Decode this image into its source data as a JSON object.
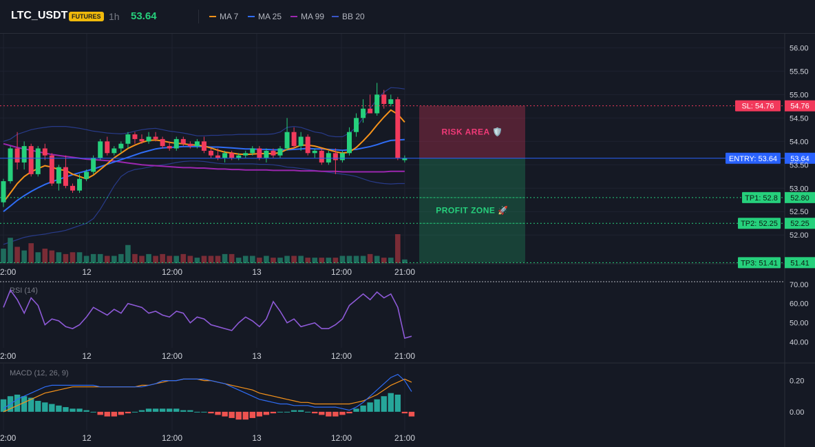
{
  "header": {
    "symbol": "LTC_USDT",
    "badge": "FUTURES",
    "timeframe": "1h",
    "price": "53.64",
    "legend": [
      {
        "label": "MA 7",
        "color": "#f7931a"
      },
      {
        "label": "MA 25",
        "color": "#2f6df6"
      },
      {
        "label": "MA 99",
        "color": "#9c27b0"
      },
      {
        "label": "BB 20",
        "color": "#283b8a"
      }
    ]
  },
  "colors": {
    "up": "#26a69a",
    "down": "#ef5350",
    "candle_up": "#26d07c",
    "candle_down": "#f23a5c",
    "entry": "#2962ff",
    "sl": "#f2395b",
    "tp": "#26d07c"
  },
  "chart_data": [
    {
      "type": "candlestick",
      "title": "",
      "y_ticks": [
        56.0,
        55.5,
        55.0,
        54.5,
        54.0,
        53.5,
        53.0,
        52.5,
        52.0
      ],
      "ylim": [
        51.4,
        56.3
      ],
      "x_ticks": [
        {
          "label": "12",
          "index": 12
        },
        {
          "label": "12:00",
          "index": 24
        },
        {
          "label": "13",
          "index": 36
        },
        {
          "label": "12:00",
          "index": 48
        },
        {
          "label": "21:00",
          "index": 57
        }
      ],
      "x_ticks_leading": "2:00",
      "candles": [
        {
          "o": 52.7,
          "h": 53.2,
          "l": 52.6,
          "c": 53.15
        },
        {
          "o": 53.15,
          "h": 53.9,
          "l": 53.1,
          "c": 53.85
        },
        {
          "o": 53.85,
          "h": 54.2,
          "l": 53.4,
          "c": 53.55
        },
        {
          "o": 53.55,
          "h": 54.0,
          "l": 53.4,
          "c": 53.9
        },
        {
          "o": 53.9,
          "h": 53.95,
          "l": 53.25,
          "c": 53.3
        },
        {
          "o": 53.3,
          "h": 53.9,
          "l": 53.25,
          "c": 53.85
        },
        {
          "o": 53.85,
          "h": 53.95,
          "l": 53.6,
          "c": 53.7
        },
        {
          "o": 53.7,
          "h": 53.75,
          "l": 53.05,
          "c": 53.1
        },
        {
          "o": 53.1,
          "h": 53.5,
          "l": 52.95,
          "c": 53.45
        },
        {
          "o": 53.45,
          "h": 53.7,
          "l": 53.0,
          "c": 53.05
        },
        {
          "o": 53.05,
          "h": 53.1,
          "l": 52.9,
          "c": 52.95
        },
        {
          "o": 52.95,
          "h": 53.3,
          "l": 52.9,
          "c": 53.2
        },
        {
          "o": 53.2,
          "h": 53.4,
          "l": 53.15,
          "c": 53.35
        },
        {
          "o": 53.35,
          "h": 53.7,
          "l": 53.3,
          "c": 53.65
        },
        {
          "o": 53.65,
          "h": 54.05,
          "l": 53.6,
          "c": 54.0
        },
        {
          "o": 54.0,
          "h": 54.1,
          "l": 53.7,
          "c": 53.75
        },
        {
          "o": 53.75,
          "h": 53.9,
          "l": 53.7,
          "c": 53.85
        },
        {
          "o": 53.85,
          "h": 54.0,
          "l": 53.75,
          "c": 53.95
        },
        {
          "o": 53.95,
          "h": 54.2,
          "l": 53.85,
          "c": 54.15
        },
        {
          "o": 54.15,
          "h": 54.2,
          "l": 53.95,
          "c": 54.05
        },
        {
          "o": 54.05,
          "h": 54.15,
          "l": 53.95,
          "c": 54.0
        },
        {
          "o": 54.0,
          "h": 54.2,
          "l": 53.95,
          "c": 54.1
        },
        {
          "o": 54.1,
          "h": 54.2,
          "l": 54.0,
          "c": 54.05
        },
        {
          "o": 54.05,
          "h": 54.1,
          "l": 53.85,
          "c": 53.9
        },
        {
          "o": 53.9,
          "h": 54.0,
          "l": 53.8,
          "c": 53.85
        },
        {
          "o": 53.85,
          "h": 54.1,
          "l": 53.8,
          "c": 54.05
        },
        {
          "o": 54.05,
          "h": 54.1,
          "l": 53.9,
          "c": 53.95
        },
        {
          "o": 53.95,
          "h": 54.0,
          "l": 53.85,
          "c": 53.9
        },
        {
          "o": 53.9,
          "h": 54.05,
          "l": 53.85,
          "c": 54.0
        },
        {
          "o": 54.0,
          "h": 54.1,
          "l": 53.75,
          "c": 53.8
        },
        {
          "o": 53.8,
          "h": 53.85,
          "l": 53.65,
          "c": 53.7
        },
        {
          "o": 53.7,
          "h": 53.85,
          "l": 53.6,
          "c": 53.65
        },
        {
          "o": 53.65,
          "h": 53.8,
          "l": 53.55,
          "c": 53.75
        },
        {
          "o": 53.75,
          "h": 53.8,
          "l": 53.6,
          "c": 53.65
        },
        {
          "o": 53.65,
          "h": 53.75,
          "l": 53.6,
          "c": 53.7
        },
        {
          "o": 53.7,
          "h": 53.8,
          "l": 53.65,
          "c": 53.75
        },
        {
          "o": 53.75,
          "h": 53.9,
          "l": 53.7,
          "c": 53.85
        },
        {
          "o": 53.85,
          "h": 53.9,
          "l": 53.6,
          "c": 53.65
        },
        {
          "o": 53.65,
          "h": 53.85,
          "l": 53.55,
          "c": 53.8
        },
        {
          "o": 53.8,
          "h": 53.85,
          "l": 53.65,
          "c": 53.7
        },
        {
          "o": 53.7,
          "h": 53.9,
          "l": 53.65,
          "c": 53.85
        },
        {
          "o": 53.85,
          "h": 54.5,
          "l": 53.8,
          "c": 54.2
        },
        {
          "o": 54.2,
          "h": 54.3,
          "l": 53.85,
          "c": 53.9
        },
        {
          "o": 53.9,
          "h": 54.2,
          "l": 53.8,
          "c": 54.1
        },
        {
          "o": 54.1,
          "h": 54.15,
          "l": 53.7,
          "c": 53.75
        },
        {
          "o": 53.75,
          "h": 53.85,
          "l": 53.65,
          "c": 53.8
        },
        {
          "o": 53.8,
          "h": 53.85,
          "l": 53.5,
          "c": 53.55
        },
        {
          "o": 53.55,
          "h": 53.8,
          "l": 53.5,
          "c": 53.75
        },
        {
          "o": 53.75,
          "h": 53.85,
          "l": 53.3,
          "c": 53.6
        },
        {
          "o": 53.6,
          "h": 53.8,
          "l": 53.55,
          "c": 53.75
        },
        {
          "o": 53.75,
          "h": 54.3,
          "l": 53.7,
          "c": 54.2
        },
        {
          "o": 54.2,
          "h": 54.6,
          "l": 54.1,
          "c": 54.5
        },
        {
          "o": 54.5,
          "h": 54.9,
          "l": 54.4,
          "c": 54.7
        },
        {
          "o": 54.7,
          "h": 55.0,
          "l": 54.6,
          "c": 54.6
        },
        {
          "o": 54.6,
          "h": 55.25,
          "l": 54.55,
          "c": 55.0
        },
        {
          "o": 55.0,
          "h": 55.1,
          "l": 54.7,
          "c": 54.8
        },
        {
          "o": 54.8,
          "h": 55.0,
          "l": 54.75,
          "c": 54.9
        },
        {
          "o": 54.9,
          "h": 54.95,
          "l": 53.6,
          "c": 53.65
        },
        {
          "o": 53.6,
          "h": 53.7,
          "l": 53.55,
          "c": 53.64
        }
      ],
      "volume": [
        8,
        14,
        9,
        7,
        11,
        6,
        8,
        7,
        6,
        5,
        6,
        6,
        4,
        5,
        5,
        4,
        4,
        5,
        10,
        5,
        4,
        5,
        4,
        5,
        4,
        4,
        5,
        4,
        3,
        4,
        4,
        4,
        5,
        5,
        3,
        4,
        4,
        3,
        4,
        3,
        3,
        4,
        4,
        4,
        3,
        3,
        3,
        3,
        3,
        4,
        4,
        4,
        4,
        5,
        4,
        3,
        3,
        16,
        2
      ],
      "ma7": [
        52.7,
        52.9,
        53.1,
        53.25,
        53.35,
        53.42,
        53.48,
        53.45,
        53.4,
        53.38,
        53.3,
        53.25,
        53.2,
        53.28,
        53.4,
        53.52,
        53.65,
        53.75,
        53.85,
        53.92,
        53.98,
        54.02,
        54.03,
        54.01,
        53.98,
        53.96,
        53.95,
        53.93,
        53.92,
        53.9,
        53.86,
        53.81,
        53.77,
        53.75,
        53.73,
        53.72,
        53.73,
        53.74,
        53.74,
        53.74,
        53.76,
        53.83,
        53.86,
        53.92,
        53.92,
        53.9,
        53.86,
        53.82,
        53.78,
        53.75,
        53.77,
        53.87,
        54.01,
        54.17,
        54.35,
        54.52,
        54.67,
        54.58,
        54.41
      ],
      "ma25": [
        52.5,
        52.62,
        52.74,
        52.84,
        52.93,
        53.01,
        53.08,
        53.14,
        53.19,
        53.24,
        53.29,
        53.33,
        53.37,
        53.41,
        53.46,
        53.51,
        53.56,
        53.61,
        53.66,
        53.71,
        53.76,
        53.8,
        53.84,
        53.86,
        53.87,
        53.88,
        53.89,
        53.89,
        53.89,
        53.89,
        53.88,
        53.88,
        53.87,
        53.86,
        53.85,
        53.84,
        53.84,
        53.83,
        53.83,
        53.82,
        53.82,
        53.82,
        53.83,
        53.84,
        53.85,
        53.84,
        53.84,
        53.83,
        53.82,
        53.81,
        53.82,
        53.83,
        53.86,
        53.89,
        53.93,
        53.98,
        54.02,
        54.03,
        54.04
      ],
      "ma99": [
        53.95,
        53.91,
        53.87,
        53.84,
        53.81,
        53.78,
        53.75,
        53.72,
        53.7,
        53.68,
        53.66,
        53.64,
        53.62,
        53.61,
        53.6,
        53.59,
        53.58,
        53.56,
        53.54,
        53.52,
        53.5,
        53.49,
        53.48,
        53.47,
        53.46,
        53.45,
        53.44,
        53.44,
        53.43,
        53.43,
        53.42,
        53.41,
        53.41,
        53.4,
        53.4,
        53.39,
        53.39,
        53.39,
        53.39,
        53.38,
        53.38,
        53.38,
        53.38,
        53.37,
        53.37,
        53.37,
        53.36,
        53.36,
        53.36,
        53.35,
        53.35,
        53.35,
        53.35,
        53.35,
        53.35,
        53.35,
        53.36,
        53.36,
        53.36
      ],
      "bb_upper": [
        54.0,
        54.05,
        54.15,
        54.2,
        54.25,
        54.28,
        54.3,
        54.32,
        54.32,
        54.32,
        54.3,
        54.28,
        54.25,
        54.22,
        54.2,
        54.18,
        54.17,
        54.16,
        54.18,
        54.22,
        54.25,
        54.27,
        54.28,
        54.25,
        54.22,
        54.2,
        54.18,
        54.15,
        54.12,
        54.12,
        54.13,
        54.13,
        54.14,
        54.14,
        54.15,
        54.15,
        54.15,
        54.15,
        54.15,
        54.16,
        54.2,
        54.3,
        54.32,
        54.3,
        54.25,
        54.2,
        54.18,
        54.12,
        54.1,
        54.1,
        54.18,
        54.3,
        54.5,
        54.7,
        54.9,
        55.05,
        55.15,
        55.14,
        55.12
      ],
      "bb_lower": [
        51.8,
        51.85,
        51.9,
        51.95,
        51.98,
        52.0,
        52.02,
        52.05,
        52.07,
        52.1,
        52.15,
        52.2,
        52.25,
        52.35,
        52.55,
        52.8,
        53.05,
        53.25,
        53.35,
        53.4,
        53.42,
        53.45,
        53.48,
        53.5,
        53.52,
        53.55,
        53.57,
        53.58,
        53.58,
        53.57,
        53.55,
        53.53,
        53.52,
        53.52,
        53.52,
        53.52,
        53.52,
        53.51,
        53.51,
        53.5,
        53.48,
        53.45,
        53.44,
        53.42,
        53.4,
        53.38,
        53.36,
        53.34,
        53.32,
        53.3,
        53.28,
        53.25,
        53.2,
        53.15,
        53.12,
        53.1,
        53.09,
        53.1,
        53.1
      ],
      "levels": {
        "sl": {
          "label": "SL: 54.76",
          "value": 54.76,
          "price_tag": "54.76"
        },
        "entry": {
          "label": "ENTRY: 53.64",
          "value": 53.64,
          "price_tag": "53.64"
        },
        "tp1": {
          "label": "TP1: 52.8",
          "value": 52.8,
          "price_tag": "52.80"
        },
        "tp2": {
          "label": "TP2: 52.25",
          "value": 52.25,
          "price_tag": "52.25"
        },
        "tp3": {
          "label": "TP3: 51.41",
          "value": 51.41,
          "price_tag": "51.41"
        }
      },
      "zones": {
        "risk": "RISK AREA 🛡️",
        "profit": "PROFIT ZONE 🚀"
      }
    },
    {
      "type": "line",
      "title": "RSI (14)",
      "y_ticks": [
        70.0,
        60.0,
        50.0,
        40.0
      ],
      "ylim": [
        37,
        71
      ],
      "values": [
        58,
        67,
        62,
        55,
        63,
        59,
        49,
        52,
        51,
        48,
        47,
        49,
        53,
        58,
        56,
        54,
        57,
        55,
        60,
        59,
        58,
        55,
        56,
        54,
        53,
        56,
        55,
        50,
        53,
        52,
        49,
        48,
        47,
        46,
        50,
        53,
        51,
        48,
        52,
        61,
        56,
        50,
        52,
        48,
        49,
        50,
        47,
        47,
        49,
        52,
        59,
        62,
        65,
        62,
        66,
        63,
        65,
        58,
        42,
        43
      ],
      "overbought_line": 70
    },
    {
      "type": "bar",
      "title": "MACD (12, 26, 9)",
      "y_ticks": [
        0.2,
        0.0
      ],
      "ylim": [
        -0.12,
        0.3
      ],
      "histogram": [
        0.08,
        0.1,
        0.11,
        0.1,
        0.09,
        0.07,
        0.06,
        0.05,
        0.04,
        0.03,
        0.02,
        0.02,
        0.01,
        0.0,
        -0.02,
        -0.03,
        -0.03,
        -0.02,
        -0.01,
        0.0,
        0.01,
        0.02,
        0.02,
        0.02,
        0.02,
        0.02,
        0.01,
        0.01,
        0.0,
        0.0,
        -0.01,
        -0.02,
        -0.03,
        -0.04,
        -0.05,
        -0.05,
        -0.04,
        -0.03,
        -0.02,
        -0.01,
        0.0,
        0.0,
        0.01,
        0.01,
        0.0,
        -0.01,
        -0.02,
        -0.03,
        -0.03,
        -0.02,
        -0.01,
        0.02,
        0.04,
        0.06,
        0.08,
        0.1,
        0.12,
        0.11,
        -0.01,
        -0.03
      ],
      "macd": [
        0.02,
        0.05,
        0.08,
        0.1,
        0.12,
        0.14,
        0.16,
        0.17,
        0.17,
        0.17,
        0.17,
        0.17,
        0.17,
        0.17,
        0.16,
        0.16,
        0.16,
        0.16,
        0.16,
        0.16,
        0.16,
        0.17,
        0.18,
        0.2,
        0.2,
        0.2,
        0.21,
        0.21,
        0.21,
        0.21,
        0.2,
        0.19,
        0.18,
        0.16,
        0.14,
        0.12,
        0.1,
        0.08,
        0.07,
        0.06,
        0.05,
        0.05,
        0.04,
        0.04,
        0.04,
        0.03,
        0.03,
        0.03,
        0.03,
        0.02,
        0.01,
        0.03,
        0.06,
        0.1,
        0.14,
        0.18,
        0.22,
        0.24,
        0.2,
        0.13
      ],
      "signal": [
        0.0,
        0.02,
        0.04,
        0.06,
        0.08,
        0.1,
        0.12,
        0.13,
        0.14,
        0.15,
        0.16,
        0.16,
        0.16,
        0.16,
        0.16,
        0.16,
        0.16,
        0.16,
        0.16,
        0.16,
        0.17,
        0.17,
        0.18,
        0.19,
        0.2,
        0.2,
        0.21,
        0.21,
        0.21,
        0.2,
        0.2,
        0.19,
        0.18,
        0.17,
        0.16,
        0.15,
        0.14,
        0.12,
        0.11,
        0.1,
        0.09,
        0.08,
        0.07,
        0.06,
        0.06,
        0.05,
        0.05,
        0.05,
        0.05,
        0.05,
        0.05,
        0.06,
        0.07,
        0.09,
        0.11,
        0.14,
        0.17,
        0.19,
        0.21,
        0.19
      ]
    }
  ],
  "panes": {
    "main_time_labels": [
      "2:00",
      "12",
      "12:00",
      "13",
      "12:00",
      "21:00"
    ],
    "rsi_time_labels": [
      "2:00",
      "12",
      "12:00",
      "13",
      "12:00",
      "21:00"
    ],
    "macd_time_labels": [
      "2:00",
      "12",
      "12:00",
      "13",
      "12:00",
      "21:00"
    ]
  }
}
